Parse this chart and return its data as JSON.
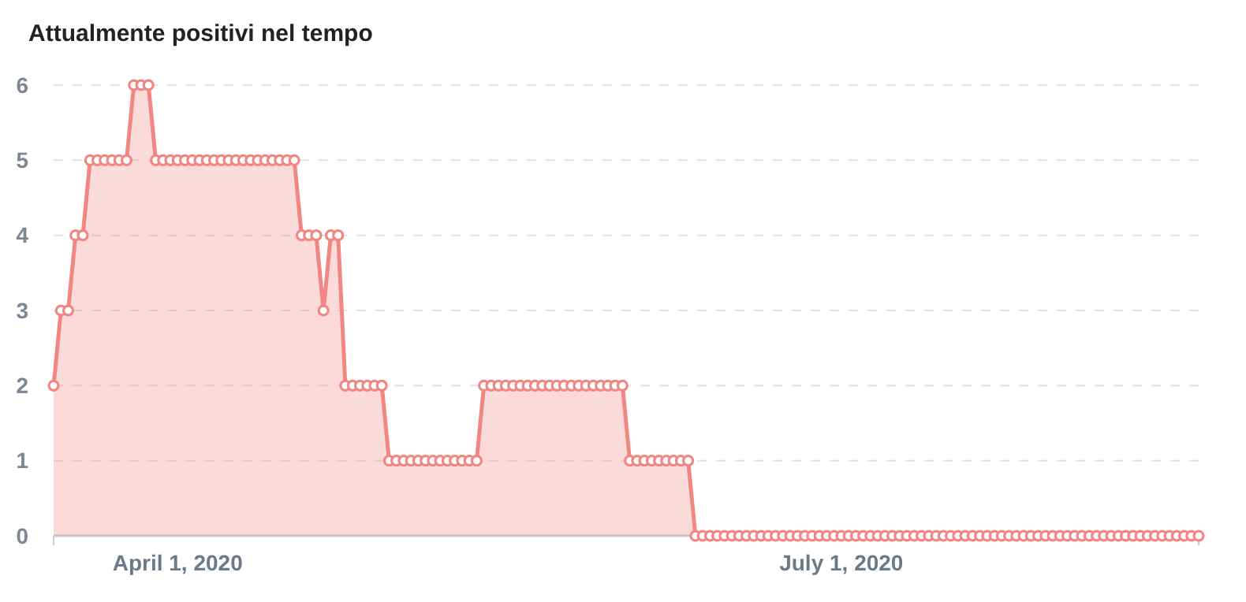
{
  "chart_data": {
    "type": "area",
    "title": "Attualmente positivi nel tempo",
    "x": [
      "2020-03-15",
      "2020-03-16",
      "2020-03-17",
      "2020-03-18",
      "2020-03-19",
      "2020-03-20",
      "2020-03-21",
      "2020-03-22",
      "2020-03-23",
      "2020-03-24",
      "2020-03-25",
      "2020-03-26",
      "2020-03-27",
      "2020-03-28",
      "2020-03-29",
      "2020-03-30",
      "2020-03-31",
      "2020-04-01",
      "2020-04-02",
      "2020-04-03",
      "2020-04-04",
      "2020-04-05",
      "2020-04-06",
      "2020-04-07",
      "2020-04-08",
      "2020-04-09",
      "2020-04-10",
      "2020-04-11",
      "2020-04-12",
      "2020-04-13",
      "2020-04-14",
      "2020-04-15",
      "2020-04-16",
      "2020-04-17",
      "2020-04-18",
      "2020-04-19",
      "2020-04-20",
      "2020-04-21",
      "2020-04-22",
      "2020-04-23",
      "2020-04-24",
      "2020-04-25",
      "2020-04-26",
      "2020-04-27",
      "2020-04-28",
      "2020-04-29",
      "2020-04-30",
      "2020-05-01",
      "2020-05-02",
      "2020-05-03",
      "2020-05-04",
      "2020-05-05",
      "2020-05-06",
      "2020-05-07",
      "2020-05-08",
      "2020-05-09",
      "2020-05-10",
      "2020-05-11",
      "2020-05-12",
      "2020-05-13",
      "2020-05-14",
      "2020-05-15",
      "2020-05-16",
      "2020-05-17",
      "2020-05-18",
      "2020-05-19",
      "2020-05-20",
      "2020-05-21",
      "2020-05-22",
      "2020-05-23",
      "2020-05-24",
      "2020-05-25",
      "2020-05-26",
      "2020-05-27",
      "2020-05-28",
      "2020-05-29",
      "2020-05-30",
      "2020-05-31",
      "2020-06-01",
      "2020-06-02",
      "2020-06-03",
      "2020-06-04",
      "2020-06-05",
      "2020-06-06",
      "2020-06-07",
      "2020-06-08",
      "2020-06-09",
      "2020-06-10",
      "2020-06-11",
      "2020-06-12",
      "2020-06-13",
      "2020-06-14",
      "2020-06-15",
      "2020-06-16",
      "2020-06-17",
      "2020-06-18",
      "2020-06-19",
      "2020-06-20",
      "2020-06-21",
      "2020-06-22",
      "2020-06-23",
      "2020-06-24",
      "2020-06-25",
      "2020-06-26",
      "2020-06-27",
      "2020-06-28",
      "2020-06-29",
      "2020-06-30",
      "2020-07-01",
      "2020-07-02",
      "2020-07-03",
      "2020-07-04",
      "2020-07-05",
      "2020-07-06",
      "2020-07-07",
      "2020-07-08",
      "2020-07-09",
      "2020-07-10",
      "2020-07-11",
      "2020-07-12",
      "2020-07-13",
      "2020-07-14",
      "2020-07-15",
      "2020-07-16",
      "2020-07-17",
      "2020-07-18",
      "2020-07-19",
      "2020-07-20",
      "2020-07-21",
      "2020-07-22",
      "2020-07-23",
      "2020-07-24",
      "2020-07-25",
      "2020-07-26",
      "2020-07-27",
      "2020-07-28",
      "2020-07-29",
      "2020-07-30",
      "2020-07-31",
      "2020-08-01",
      "2020-08-02",
      "2020-08-03",
      "2020-08-04",
      "2020-08-05",
      "2020-08-06",
      "2020-08-07",
      "2020-08-08",
      "2020-08-09",
      "2020-08-10",
      "2020-08-11",
      "2020-08-12",
      "2020-08-13",
      "2020-08-14",
      "2020-08-15",
      "2020-08-16",
      "2020-08-17",
      "2020-08-18",
      "2020-08-19"
    ],
    "series": [
      {
        "color": "#f08783",
        "values": [
          2,
          3,
          3,
          4,
          4,
          5,
          5,
          5,
          5,
          5,
          5,
          6,
          6,
          6,
          5,
          5,
          5,
          5,
          5,
          5,
          5,
          5,
          5,
          5,
          5,
          5,
          5,
          5,
          5,
          5,
          5,
          5,
          5,
          5,
          4,
          4,
          4,
          3,
          4,
          4,
          2,
          2,
          2,
          2,
          2,
          2,
          1,
          1,
          1,
          1,
          1,
          1,
          1,
          1,
          1,
          1,
          1,
          1,
          1,
          2,
          2,
          2,
          2,
          2,
          2,
          2,
          2,
          2,
          2,
          2,
          2,
          2,
          2,
          2,
          2,
          2,
          2,
          2,
          2,
          1,
          1,
          1,
          1,
          1,
          1,
          1,
          1,
          1,
          0,
          0,
          0,
          0,
          0,
          0,
          0,
          0,
          0,
          0,
          0,
          0,
          0,
          0,
          0,
          0,
          0,
          0,
          0,
          0,
          0,
          0,
          0,
          0,
          0,
          0,
          0,
          0,
          0,
          0,
          0,
          0,
          0,
          0,
          0,
          0,
          0,
          0,
          0,
          0,
          0,
          0,
          0,
          0,
          0,
          0,
          0,
          0,
          0,
          0,
          0,
          0,
          0,
          0,
          0,
          0,
          0,
          0,
          0,
          0,
          0,
          0,
          0,
          0,
          0,
          0,
          0,
          0,
          0,
          0
        ]
      }
    ],
    "xlim": [
      "2020-03-15",
      "2020-08-19"
    ],
    "xticks": [
      {
        "value": "2020-04-01",
        "label": "April 1, 2020"
      },
      {
        "value": "2020-07-01",
        "label": "July 1, 2020"
      }
    ],
    "ylim": [
      0,
      6
    ],
    "yticks": [
      0,
      1,
      2,
      3,
      4,
      5,
      6
    ],
    "grid": "y",
    "marker": "circle"
  }
}
